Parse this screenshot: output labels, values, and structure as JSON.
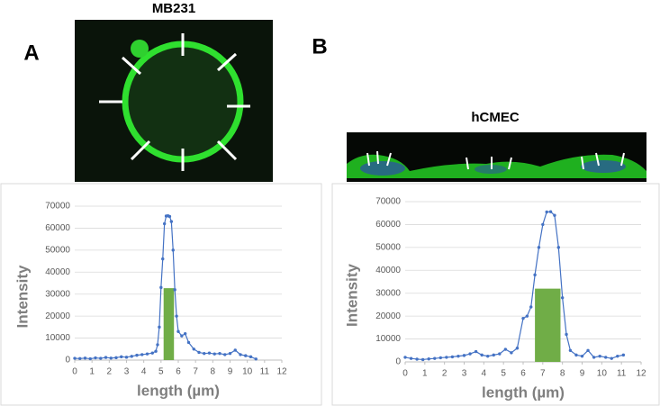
{
  "chart_data": [
    {
      "type": "line",
      "panel": "A",
      "image_title": "MB231",
      "xlabel": "length (µm)",
      "ylabel": "Intensity",
      "xlim": [
        0,
        12
      ],
      "xticks": [
        0,
        1,
        2,
        3,
        4,
        5,
        6,
        7,
        8,
        9,
        10,
        11,
        12
      ],
      "ylim": [
        0,
        70000
      ],
      "yticks": [
        0,
        10000,
        20000,
        30000,
        40000,
        50000,
        60000,
        70000
      ],
      "grid": true,
      "series": [
        {
          "color": "#4472c4",
          "x": [
            0,
            0.3,
            0.6,
            0.9,
            1.2,
            1.5,
            1.8,
            2.1,
            2.4,
            2.7,
            3.0,
            3.3,
            3.6,
            3.9,
            4.2,
            4.5,
            4.7,
            4.8,
            4.9,
            5.0,
            5.1,
            5.2,
            5.3,
            5.4,
            5.5,
            5.6,
            5.7,
            5.8,
            5.9,
            6.0,
            6.2,
            6.4,
            6.6,
            6.9,
            7.2,
            7.5,
            7.8,
            8.1,
            8.4,
            8.7,
            9.0,
            9.3,
            9.6,
            9.9,
            10.2,
            10.5
          ],
          "values": [
            800,
            700,
            900,
            600,
            1000,
            800,
            1200,
            900,
            1100,
            1500,
            1300,
            1700,
            2200,
            2500,
            2800,
            3200,
            4000,
            7000,
            15000,
            33000,
            46000,
            62000,
            65500,
            65600,
            65300,
            63000,
            50000,
            32000,
            20000,
            13000,
            11000,
            12000,
            8000,
            5000,
            3500,
            3000,
            3200,
            2800,
            3000,
            2500,
            3000,
            4500,
            2500,
            2000,
            1500,
            500
          ]
        }
      ],
      "fwhm": {
        "x": [
          5.15,
          5.75
        ],
        "value": 32700,
        "color": "#70ad47"
      }
    },
    {
      "type": "line",
      "panel": "B",
      "image_title": "hCMEC",
      "xlabel": "length (µm)",
      "ylabel": "Intensity",
      "xlim": [
        0,
        12
      ],
      "xticks": [
        0,
        1,
        2,
        3,
        4,
        5,
        6,
        7,
        8,
        9,
        10,
        11,
        12
      ],
      "ylim": [
        0,
        70000
      ],
      "yticks": [
        0,
        10000,
        20000,
        30000,
        40000,
        50000,
        60000,
        70000
      ],
      "grid": true,
      "series": [
        {
          "color": "#4472c4",
          "x": [
            0,
            0.3,
            0.6,
            0.9,
            1.2,
            1.5,
            1.8,
            2.1,
            2.4,
            2.7,
            3.0,
            3.3,
            3.6,
            3.9,
            4.2,
            4.5,
            4.8,
            5.1,
            5.4,
            5.7,
            6.0,
            6.2,
            6.4,
            6.6,
            6.8,
            7.0,
            7.2,
            7.4,
            7.6,
            7.8,
            8.0,
            8.2,
            8.4,
            8.7,
            9.0,
            9.3,
            9.6,
            9.9,
            10.2,
            10.5,
            10.8,
            11.1
          ],
          "values": [
            2000,
            1500,
            1200,
            1000,
            1300,
            1500,
            1800,
            2000,
            2200,
            2500,
            2800,
            3500,
            4500,
            3000,
            2500,
            3000,
            3500,
            5500,
            4000,
            6000,
            19000,
            20000,
            24000,
            38000,
            50000,
            60000,
            65500,
            65600,
            64000,
            50000,
            28000,
            12000,
            5000,
            3000,
            2500,
            5000,
            2000,
            2500,
            2000,
            1500,
            2500,
            3000
          ]
        }
      ],
      "fwhm": {
        "x": [
          6.6,
          7.9
        ],
        "value": 32000,
        "color": "#70ad47"
      }
    }
  ]
}
